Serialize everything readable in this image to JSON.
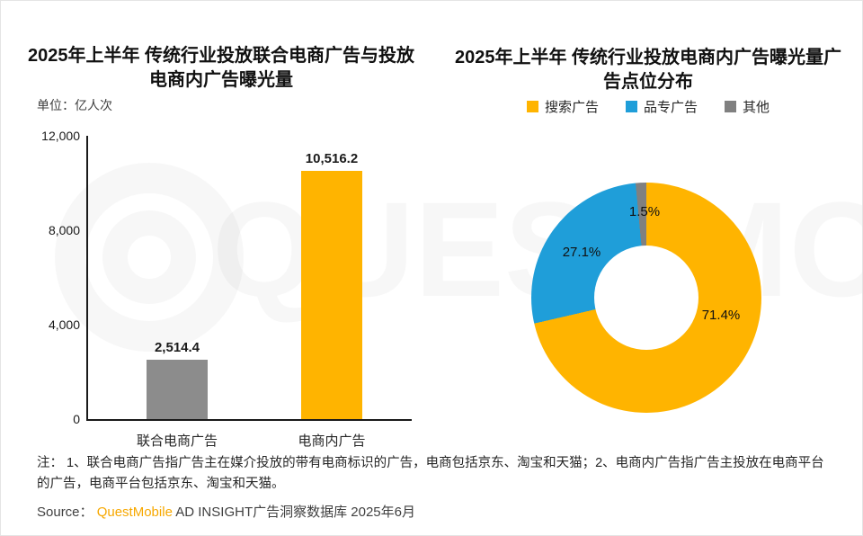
{
  "watermark_text": "QUESTMOBILE",
  "chart_data": [
    {
      "type": "bar",
      "title": "2025年上半年 传统行业投放联合电商广告与投放电商内广告曝光量",
      "unit_label": "单位：亿人次",
      "categories": [
        "联合电商广告",
        "电商内广告"
      ],
      "values": [
        2514.4,
        10516.2
      ],
      "value_labels": [
        "2,514.4",
        "10,516.2"
      ],
      "bar_colors": [
        "#8C8C8C",
        "#FFB400"
      ],
      "ylim": [
        0,
        12000
      ],
      "ytick_labels": [
        "0",
        "4,000",
        "8,000",
        "12,000"
      ],
      "grid": false,
      "legend_position": "none"
    },
    {
      "type": "pie",
      "donut": true,
      "title": "2025年上半年 传统行业投放电商内广告曝光量广告点位分布",
      "legend_position": "top",
      "slices": [
        {
          "label": "搜索广告",
          "value": 71.4,
          "display": "71.4%",
          "color": "#FFB400"
        },
        {
          "label": "品专广告",
          "value": 27.1,
          "display": "27.1%",
          "color": "#1F9ED9"
        },
        {
          "label": "其他",
          "value": 1.5,
          "display": "1.5%",
          "color": "#808080"
        }
      ]
    }
  ],
  "footer": {
    "note": "注：  1、联合电商广告指广告主在媒介投放的带有电商标识的广告，电商包括京东、淘宝和天猫；2、电商内广告指广告主投放在电商平台的广告，电商平台包括京东、淘宝和天猫。",
    "source_prefix": "Source：  ",
    "source_brand": "QuestMobile",
    "source_suffix": " AD INSIGHT广告洞察数据库 2025年6月"
  }
}
